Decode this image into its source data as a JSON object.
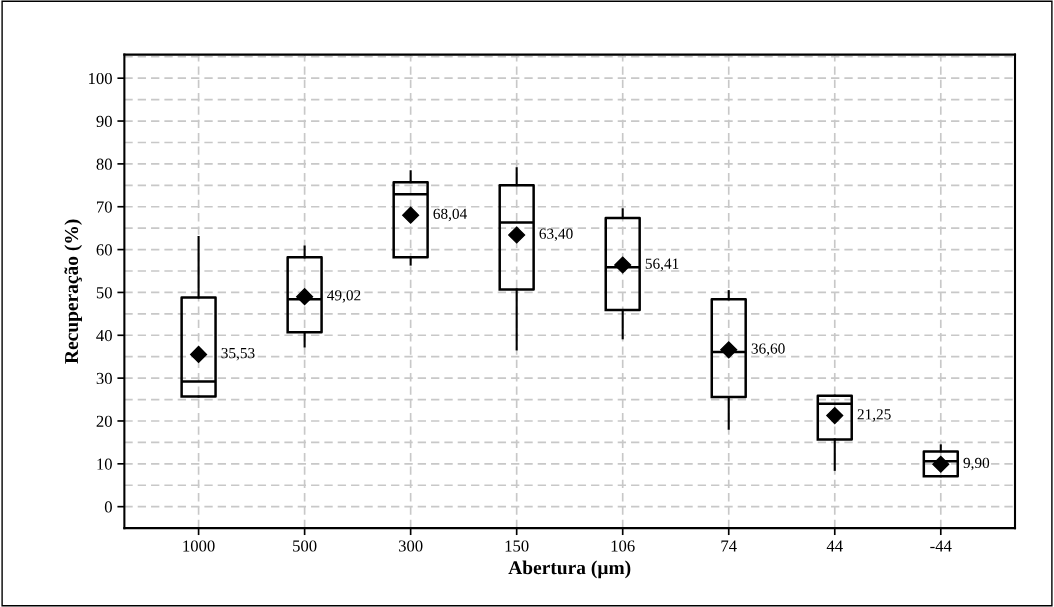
{
  "chart_data": {
    "type": "box",
    "xlabel": "Abertura (µm)",
    "ylabel": "Recuperação (%)",
    "categories": [
      "1000",
      "500",
      "300",
      "150",
      "106",
      "74",
      "44",
      "-44"
    ],
    "boxes": [
      {
        "low": 25.7,
        "q1": 25.7,
        "median": 29.2,
        "q3": 48.8,
        "high": 62.9,
        "mean": 35.53
      },
      {
        "low": 37.4,
        "q1": 40.7,
        "median": 48.4,
        "q3": 58.2,
        "high": 60.7,
        "mean": 49.02
      },
      {
        "low": 56.5,
        "q1": 58.2,
        "median": 72.9,
        "q3": 75.7,
        "high": 78.3,
        "mean": 68.04
      },
      {
        "low": 36.7,
        "q1": 50.7,
        "median": 66.3,
        "q3": 75.0,
        "high": 79.0,
        "mean": 63.4
      },
      {
        "low": 39.3,
        "q1": 45.9,
        "median": 55.9,
        "q3": 67.4,
        "high": 69.4,
        "mean": 56.41
      },
      {
        "low": 18.2,
        "q1": 25.6,
        "median": 36.1,
        "q3": 48.4,
        "high": 50.3,
        "mean": 36.6
      },
      {
        "low": 8.6,
        "q1": 15.7,
        "median": 24.0,
        "q3": 25.9,
        "high": 25.9,
        "mean": 21.25
      },
      {
        "low": 7.1,
        "q1": 7.1,
        "median": 10.6,
        "q3": 12.9,
        "high": 14.3,
        "mean": 9.9
      }
    ],
    "value_labels": [
      "35,53",
      "49,02",
      "68,04",
      "63,40",
      "56,41",
      "36,60",
      "21,25",
      "9,90"
    ],
    "color": "#000000",
    "marker": "diamond",
    "ylim": [
      -5,
      105.5
    ],
    "yticks": [
      0,
      10,
      20,
      30,
      40,
      50,
      60,
      70,
      80,
      90,
      100
    ],
    "grid": true
  }
}
